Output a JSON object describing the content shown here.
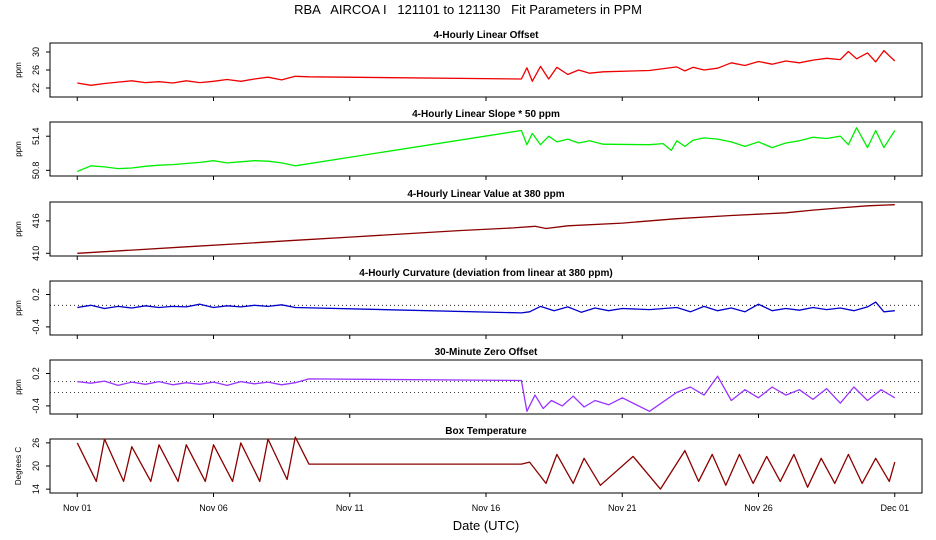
{
  "title": "RBA   AIRCOA I   121101 to 121130   Fit Parameters in PPM",
  "xlabel": "Date (UTC)",
  "chart_data": [
    {
      "type": "line",
      "title": "4-Hourly Linear Offset",
      "ylabel": "ppm",
      "color": "#ee0000",
      "ylim": [
        20,
        32
      ],
      "yticks": [
        "22",
        "26",
        "30"
      ],
      "yticks_values": [
        22,
        26,
        30
      ],
      "x": [
        0,
        0.5,
        1,
        1.5,
        2,
        2.5,
        3,
        3.5,
        4,
        4.5,
        5,
        5.5,
        6,
        6.5,
        7,
        7.5,
        8,
        8.5,
        16.3,
        16.5,
        16.7,
        17,
        17.3,
        17.6,
        18,
        18.4,
        18.8,
        19.3,
        21,
        22,
        22.3,
        22.6,
        23,
        23.5,
        24,
        24.5,
        25,
        25.5,
        26,
        26.5,
        27,
        27.5,
        28,
        28.3,
        28.6,
        29,
        29.3,
        29.6,
        30
      ],
      "values": [
        23.1,
        22.6,
        23.0,
        23.3,
        23.6,
        23.2,
        23.4,
        23.1,
        23.6,
        23.2,
        23.5,
        23.9,
        23.5,
        24.0,
        24.4,
        23.8,
        24.6,
        24.5,
        24.0,
        26.5,
        23.5,
        26.8,
        24.0,
        26.6,
        25.0,
        26.0,
        25.3,
        25.6,
        25.9,
        26.7,
        25.8,
        26.6,
        26.0,
        26.4,
        27.6,
        27.0,
        27.9,
        27.3,
        28.0,
        27.6,
        28.2,
        28.6,
        28.3,
        30.1,
        28.5,
        29.8,
        27.8,
        30.3,
        28.0
      ]
    },
    {
      "type": "line",
      "title": "4-Hourly Linear Slope * 50 ppm",
      "ylabel": "ppm",
      "color": "#00ee00",
      "ylim": [
        50.7,
        51.65
      ],
      "yticks": [
        "50.8",
        "51.4"
      ],
      "yticks_values": [
        50.8,
        51.4
      ],
      "x": [
        0,
        0.5,
        1,
        1.5,
        2,
        2.5,
        3,
        3.5,
        4,
        4.5,
        5,
        5.5,
        6,
        6.5,
        7,
        7.5,
        8,
        16.3,
        16.5,
        16.7,
        17,
        17.3,
        17.6,
        18,
        18.4,
        18.8,
        19.3,
        21,
        21.5,
        21.8,
        22,
        22.3,
        22.6,
        23,
        23.5,
        24,
        24.5,
        25,
        25.5,
        26,
        26.5,
        27,
        27.5,
        28,
        28.3,
        28.6,
        29,
        29.3,
        29.6,
        30
      ],
      "values": [
        50.78,
        50.88,
        50.86,
        50.83,
        50.84,
        50.87,
        50.89,
        50.9,
        50.92,
        50.94,
        50.97,
        50.93,
        50.95,
        50.97,
        50.96,
        50.93,
        50.88,
        51.5,
        51.25,
        51.45,
        51.25,
        51.4,
        51.3,
        51.35,
        51.28,
        51.32,
        51.26,
        51.25,
        51.27,
        51.15,
        51.32,
        51.22,
        51.33,
        51.37,
        51.35,
        51.3,
        51.22,
        51.3,
        51.2,
        51.28,
        51.32,
        51.38,
        51.36,
        51.4,
        51.25,
        51.55,
        51.2,
        51.5,
        51.2,
        51.5
      ]
    },
    {
      "type": "line",
      "title": "4-Hourly Linear Value at 380 ppm",
      "ylabel": "ppm",
      "color": "#8b0000",
      "ylim": [
        409.5,
        419.5
      ],
      "yticks": [
        "410",
        "416"
      ],
      "yticks_values": [
        410,
        416
      ],
      "x": [
        0,
        2,
        4,
        6,
        8,
        10,
        12,
        14,
        16,
        16.8,
        17.2,
        18,
        20,
        22,
        24,
        26,
        27,
        28,
        29,
        30
      ],
      "values": [
        410.0,
        410.6,
        411.2,
        411.8,
        412.4,
        413.0,
        413.6,
        414.2,
        414.7,
        415.0,
        414.6,
        415.1,
        415.6,
        416.4,
        417.0,
        417.5,
        418.0,
        418.4,
        418.8,
        419.0
      ]
    },
    {
      "type": "line",
      "title": "4-Hourly Curvature (deviation from linear at 380 ppm)",
      "ylabel": "ppm",
      "color": "#0000cc",
      "ylim": [
        -0.55,
        0.45
      ],
      "yticks": [
        "-0.4",
        "0.2"
      ],
      "yticks_values": [
        -0.4,
        0.2
      ],
      "reference_line": 0,
      "x": [
        0,
        0.5,
        1,
        1.5,
        2,
        2.5,
        3,
        3.5,
        4,
        4.5,
        5,
        5.5,
        6,
        6.5,
        7,
        7.5,
        8,
        16.3,
        16.6,
        17,
        17.5,
        18,
        18.5,
        19,
        19.5,
        20,
        21,
        22,
        22.5,
        23,
        23.5,
        24,
        24.5,
        25,
        25.5,
        26,
        26.5,
        27,
        27.5,
        28,
        28.5,
        29,
        29.3,
        29.6,
        30
      ],
      "values": [
        -0.04,
        0.0,
        -0.06,
        -0.02,
        -0.05,
        -0.01,
        -0.04,
        -0.02,
        -0.03,
        0.02,
        -0.04,
        -0.01,
        -0.03,
        0.0,
        -0.02,
        0.01,
        -0.04,
        -0.14,
        -0.12,
        -0.02,
        -0.1,
        -0.03,
        -0.13,
        -0.05,
        -0.1,
        -0.06,
        -0.08,
        -0.04,
        -0.12,
        -0.02,
        -0.1,
        -0.05,
        -0.12,
        0.02,
        -0.1,
        -0.06,
        -0.09,
        -0.04,
        -0.08,
        -0.05,
        -0.1,
        -0.03,
        0.06,
        -0.12,
        -0.1
      ]
    },
    {
      "type": "line",
      "title": "30-Minute Zero Offset",
      "ylabel": "ppm",
      "color": "#9933ff",
      "ylim": [
        -0.55,
        0.45
      ],
      "yticks": [
        "-0.4",
        "0.2"
      ],
      "yticks_values": [
        -0.4,
        0.2
      ],
      "reference_lines": [
        0.05,
        -0.15
      ],
      "x": [
        0,
        0.5,
        1,
        1.5,
        2,
        2.5,
        3,
        3.5,
        4,
        4.5,
        5,
        5.5,
        6,
        6.5,
        7,
        7.5,
        8,
        8.5,
        16.3,
        16.5,
        16.8,
        17.1,
        17.4,
        17.8,
        18.2,
        18.6,
        19,
        19.5,
        20,
        21,
        22,
        22.5,
        23,
        23.5,
        24,
        24.5,
        25,
        25.5,
        26,
        26.5,
        27,
        27.5,
        28,
        28.5,
        29,
        29.5,
        30
      ],
      "values": [
        0.05,
        0.02,
        0.06,
        -0.02,
        0.04,
        0.0,
        0.05,
        -0.01,
        0.03,
        0.0,
        0.04,
        -0.02,
        0.05,
        0.01,
        0.04,
        -0.01,
        0.03,
        0.1,
        0.07,
        -0.5,
        -0.2,
        -0.45,
        -0.3,
        -0.4,
        -0.22,
        -0.42,
        -0.3,
        -0.38,
        -0.25,
        -0.5,
        -0.15,
        -0.05,
        -0.2,
        0.15,
        -0.3,
        -0.1,
        -0.25,
        -0.05,
        -0.2,
        -0.1,
        -0.28,
        -0.08,
        -0.35,
        -0.05,
        -0.3,
        -0.1,
        -0.25
      ]
    },
    {
      "type": "line",
      "title": "Box Temperature",
      "ylabel": "Degrees C",
      "color": "#8b0000",
      "ylim": [
        13,
        27
      ],
      "yticks": [
        "14",
        "20",
        "26"
      ],
      "yticks_values": [
        14,
        20,
        26
      ],
      "x": [
        0,
        0.7,
        1,
        1.7,
        2,
        2.7,
        3,
        3.7,
        4,
        4.7,
        5,
        5.7,
        6,
        6.7,
        7,
        7.7,
        8,
        8.5,
        9,
        11,
        13,
        16.3,
        16.6,
        17.2,
        17.6,
        18.2,
        18.6,
        19.2,
        20.4,
        21.4,
        22.3,
        22.8,
        23.3,
        23.8,
        24.3,
        24.8,
        25.3,
        25.8,
        26.3,
        26.8,
        27.3,
        27.8,
        28.3,
        28.8,
        29.3,
        29.8,
        30
      ],
      "values": [
        26.0,
        16.0,
        27.0,
        16.0,
        25.0,
        16.0,
        25.5,
        16.0,
        25.5,
        16.0,
        25.5,
        16.0,
        26.0,
        16.0,
        27.0,
        16.5,
        27.5,
        20.5,
        20.5,
        20.5,
        20.5,
        20.5,
        21.0,
        15.5,
        23.0,
        15.5,
        22.0,
        15.0,
        22.5,
        14.0,
        24.0,
        16.0,
        23.0,
        15.0,
        23.0,
        15.5,
        22.5,
        16.0,
        23.0,
        14.5,
        22.0,
        15.5,
        23.0,
        15.5,
        22.0,
        16.0,
        21.0
      ]
    }
  ],
  "x_axis": {
    "xlim": [
      -1,
      31
    ],
    "ticks": [
      "Nov 01",
      "Nov 06",
      "Nov 11",
      "Nov 16",
      "Nov 21",
      "Nov 26",
      "Dec 01"
    ],
    "tick_values": [
      0,
      5,
      10,
      15,
      20,
      25,
      30
    ]
  }
}
